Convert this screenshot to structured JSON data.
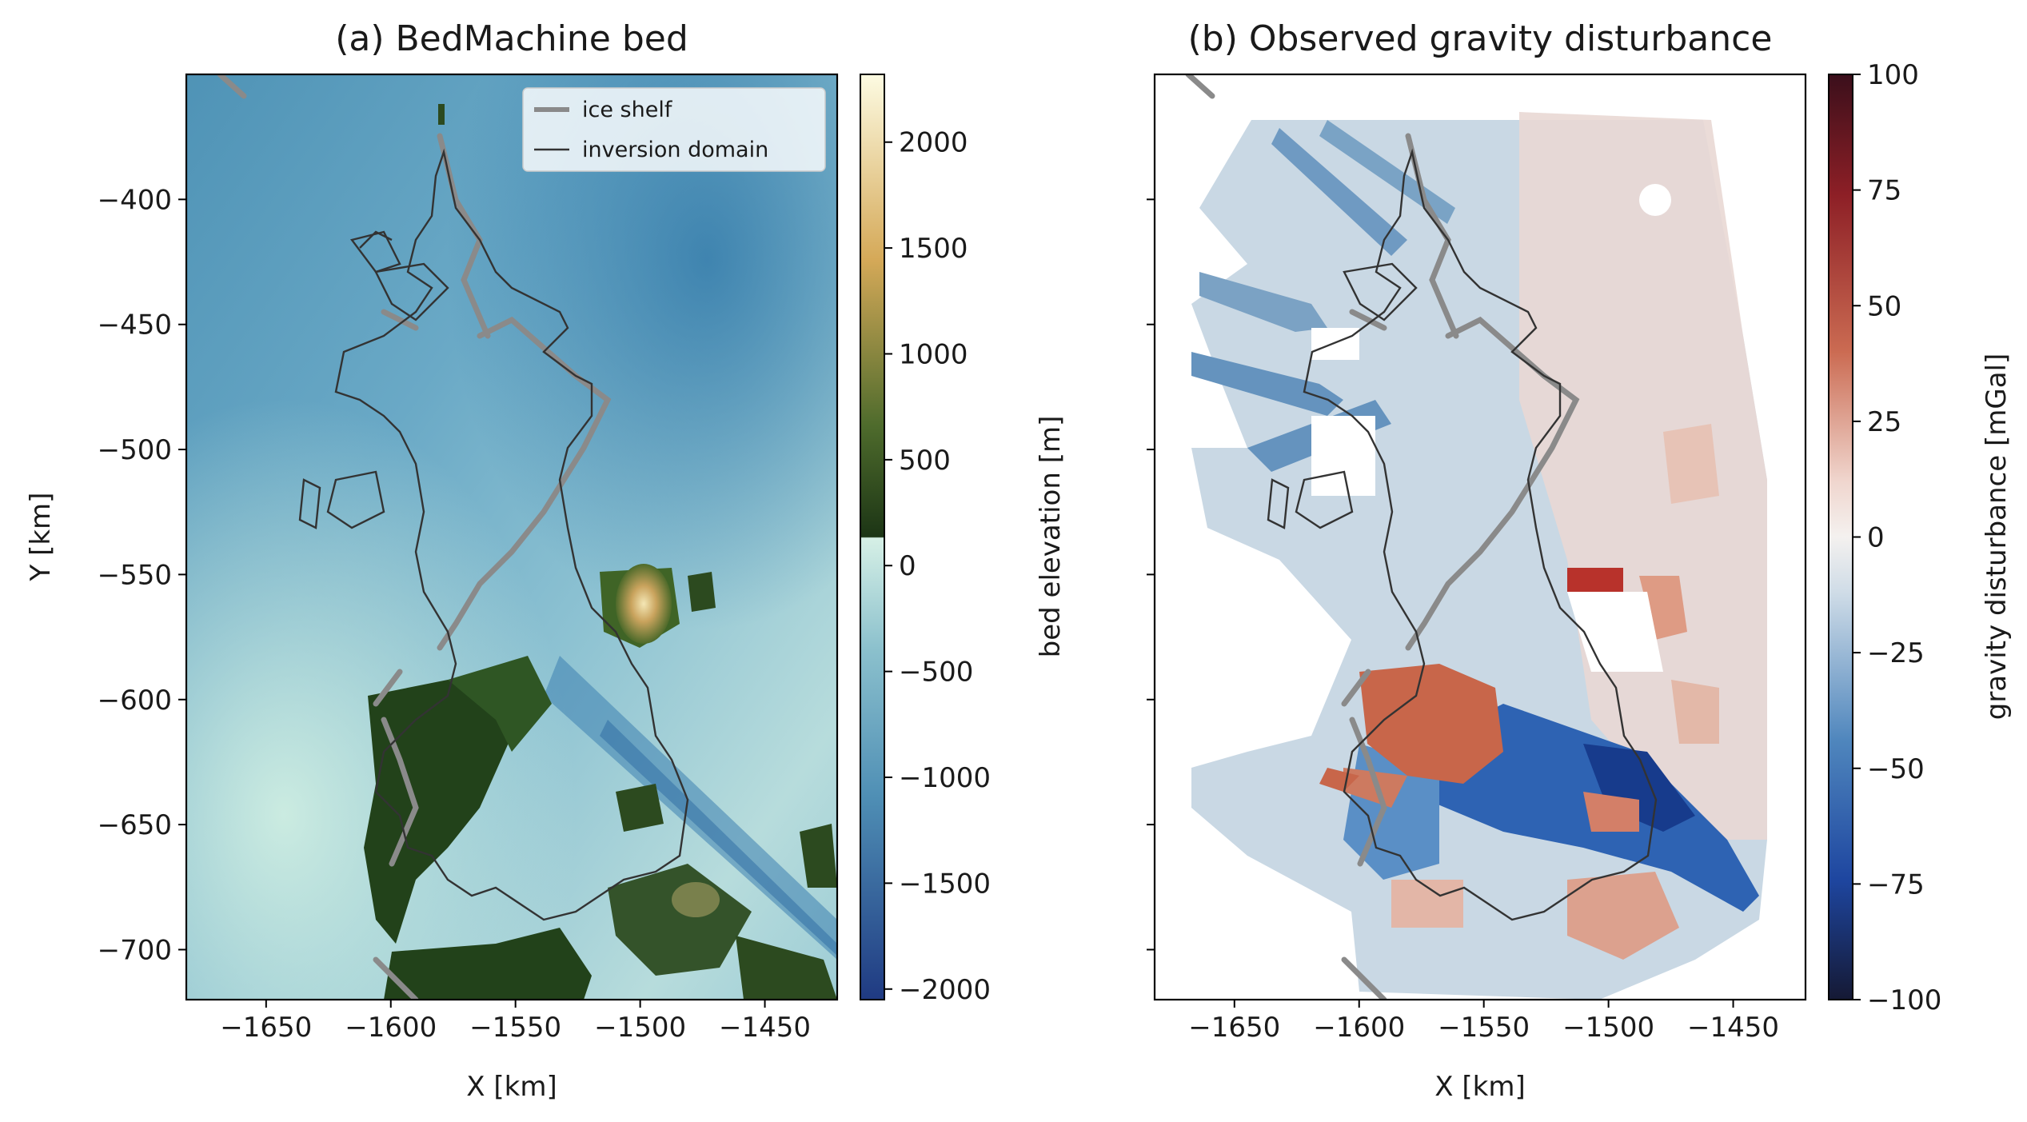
{
  "chart_data": [
    {
      "type": "heatmap",
      "title": "(a) BedMachine bed",
      "xlabel": "X [km]",
      "ylabel": "Y [km]",
      "xlim": [
        -1682,
        -1421
      ],
      "ylim": [
        -720,
        -350
      ],
      "xticks": [
        -1650,
        -1600,
        -1550,
        -1500,
        -1450
      ],
      "xtick_labels": [
        "−1650",
        "−1600",
        "−1550",
        "−1500",
        "−1450"
      ],
      "yticks": [
        -400,
        -450,
        -500,
        -550,
        -600,
        -650,
        -700
      ],
      "ytick_labels": [
        "−400",
        "−450",
        "−500",
        "−550",
        "−600",
        "−650",
        "−700"
      ],
      "legend": {
        "position": "top-right",
        "entries": [
          {
            "label": "ice shelf",
            "color": "#8a8a8a",
            "style": "thick"
          },
          {
            "label": "inversion domain",
            "color": "#333333",
            "style": "thin"
          }
        ]
      },
      "colorbar": {
        "label": "bed elevation [m]",
        "range": [
          -2050,
          2320
        ],
        "ticks": [
          2000,
          1500,
          1000,
          500,
          0,
          -500,
          -1000,
          -1500,
          -2000
        ],
        "tick_labels": [
          "2000",
          "1500",
          "1000",
          "500",
          "0",
          "−500",
          "−1000",
          "−1500",
          "−2000"
        ],
        "colormap": "topo: blues below 0, greens to tan above 0"
      }
    },
    {
      "type": "heatmap",
      "title": "(b) Observed gravity disturbance",
      "xlabel": "X [km]",
      "ylabel": "",
      "xlim": [
        -1682,
        -1421
      ],
      "ylim": [
        -720,
        -350
      ],
      "xticks": [
        -1650,
        -1600,
        -1550,
        -1500,
        -1450
      ],
      "xtick_labels": [
        "−1650",
        "−1600",
        "−1550",
        "−1500",
        "−1450"
      ],
      "yticks": [
        -400,
        -450,
        -500,
        -550,
        -600,
        -650,
        -700
      ],
      "ytick_labels": [],
      "colorbar": {
        "label": "gravity disturbance [mGal]",
        "range": [
          -100,
          100
        ],
        "ticks": [
          100,
          75,
          50,
          25,
          0,
          -25,
          -50,
          -75,
          -100
        ],
        "tick_labels": [
          "100",
          "75",
          "50",
          "25",
          "0",
          "−25",
          "−50",
          "−75",
          "−100"
        ],
        "colormap": "diverging blue-white-red"
      }
    }
  ]
}
